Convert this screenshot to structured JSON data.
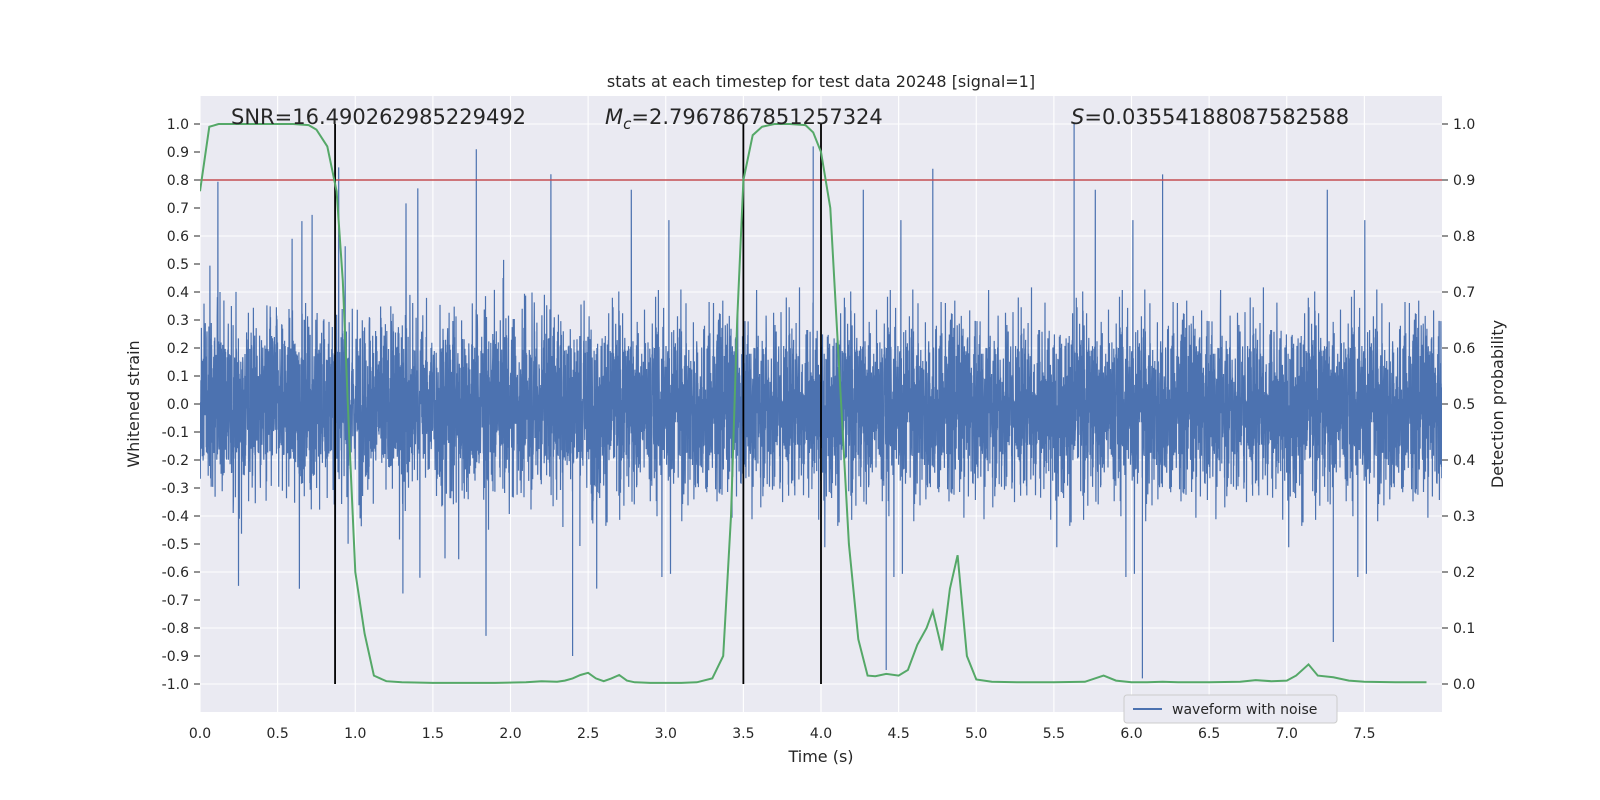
{
  "chart_data": {
    "type": "line",
    "title": "stats at each timestep for test data 20248 [signal=1]",
    "xlabel": "Time (s)",
    "ylabel_left": "Whitened strain",
    "ylabel_right": "Detection probability",
    "xlim": [
      0.0,
      8.0
    ],
    "ylim_left": [
      -1.1,
      1.1
    ],
    "ylim_right": [
      -0.05,
      1.05
    ],
    "xticks": [
      0.0,
      0.5,
      1.0,
      1.5,
      2.0,
      2.5,
      3.0,
      3.5,
      4.0,
      4.5,
      5.0,
      5.5,
      6.0,
      6.5,
      7.0,
      7.5
    ],
    "xtick_labels": [
      "0.0",
      "0.5",
      "1.0",
      "1.5",
      "2.0",
      "2.5",
      "3.0",
      "3.5",
      "4.0",
      "4.5",
      "5.0",
      "5.5",
      "6.0",
      "6.5",
      "7.0",
      "7.5"
    ],
    "yticks_left": [
      1.0,
      0.9,
      0.8,
      0.7,
      0.6,
      0.5,
      0.4,
      0.3,
      0.2,
      0.1,
      0.0,
      -0.1,
      -0.2,
      -0.3,
      -0.4,
      -0.5,
      -0.6,
      -0.7,
      -0.8,
      -0.9,
      -1.0
    ],
    "ytick_labels_left": [
      "1.0",
      "0.9",
      "0.8",
      "0.7",
      "0.6",
      "0.5",
      "0.4",
      "0.3",
      "0.2",
      "0.1",
      "0.0",
      "-0.1",
      "-0.2",
      "-0.3",
      "-0.4",
      "-0.5",
      "-0.6",
      "-0.7",
      "-0.8",
      "-0.9",
      "-1.0"
    ],
    "yticks_right": [
      1.0,
      0.9,
      0.8,
      0.7,
      0.6,
      0.5,
      0.4,
      0.3,
      0.2,
      0.1,
      0.0
    ],
    "ytick_labels_right": [
      "1.0",
      "0.9",
      "0.8",
      "0.7",
      "0.6",
      "0.5",
      "0.4",
      "0.3",
      "0.2",
      "0.1",
      "0.0"
    ],
    "grid": true,
    "legend_position": "lower-right",
    "annotations": {
      "snr": "SNR=16.490262985229492",
      "mc_symbol": "M",
      "mc_sub": "c",
      "mc_value": "=2.7967867851257324",
      "s_symbol": "S",
      "s_value": "=0.03554188087582588"
    },
    "threshold": {
      "value": 0.8,
      "axis": "left",
      "color": "#c44e52"
    },
    "vertical_lines": [
      0.87,
      3.5,
      4.0
    ],
    "series": [
      {
        "name": "waveform with noise",
        "axis": "left",
        "color": "#4c72b0",
        "style": "dense noise, envelope approx ±0.45 with spikes",
        "max_value": 1.0,
        "min_value": -0.98
      },
      {
        "axis": "right",
        "color": "#55a868",
        "x": [
          0.0,
          0.06,
          0.12,
          0.2,
          0.3,
          0.4,
          0.5,
          0.6,
          0.7,
          0.75,
          0.82,
          0.88,
          0.92,
          0.96,
          1.0,
          1.06,
          1.12,
          1.2,
          1.3,
          1.5,
          1.7,
          1.9,
          2.1,
          2.2,
          2.3,
          2.35,
          2.4,
          2.45,
          2.5,
          2.55,
          2.6,
          2.65,
          2.7,
          2.75,
          2.8,
          2.9,
          3.0,
          3.1,
          3.2,
          3.3,
          3.37,
          3.42,
          3.46,
          3.5,
          3.56,
          3.62,
          3.7,
          3.8,
          3.9,
          3.95,
          4.0,
          4.06,
          4.12,
          4.18,
          4.24,
          4.3,
          4.35,
          4.42,
          4.5,
          4.56,
          4.62,
          4.68,
          4.72,
          4.78,
          4.83,
          4.88,
          4.94,
          5.0,
          5.1,
          5.3,
          5.5,
          5.7,
          5.82,
          5.9,
          6.0,
          6.1,
          6.2,
          6.3,
          6.5,
          6.7,
          6.8,
          6.9,
          7.0,
          7.06,
          7.14,
          7.2,
          7.3,
          7.4,
          7.5,
          7.7,
          7.9
        ],
        "values": [
          0.88,
          0.995,
          1.0,
          1.0,
          1.0,
          1.0,
          1.0,
          1.0,
          0.998,
          0.99,
          0.96,
          0.88,
          0.72,
          0.45,
          0.2,
          0.09,
          0.015,
          0.005,
          0.003,
          0.002,
          0.002,
          0.002,
          0.003,
          0.005,
          0.004,
          0.006,
          0.01,
          0.016,
          0.02,
          0.01,
          0.005,
          0.01,
          0.016,
          0.006,
          0.003,
          0.002,
          0.002,
          0.002,
          0.003,
          0.01,
          0.05,
          0.3,
          0.65,
          0.9,
          0.98,
          0.995,
          1.0,
          1.0,
          0.998,
          0.985,
          0.95,
          0.85,
          0.55,
          0.25,
          0.08,
          0.015,
          0.014,
          0.018,
          0.015,
          0.025,
          0.07,
          0.1,
          0.13,
          0.06,
          0.17,
          0.23,
          0.05,
          0.008,
          0.004,
          0.003,
          0.003,
          0.004,
          0.015,
          0.006,
          0.003,
          0.003,
          0.004,
          0.003,
          0.003,
          0.004,
          0.007,
          0.005,
          0.006,
          0.015,
          0.035,
          0.015,
          0.012,
          0.006,
          0.004,
          0.003,
          0.003
        ]
      }
    ]
  }
}
